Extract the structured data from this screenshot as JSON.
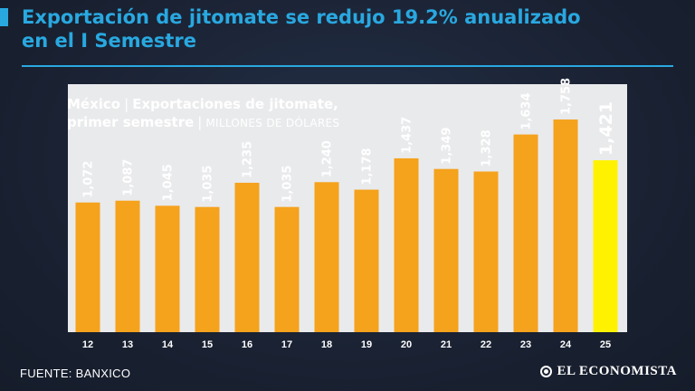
{
  "headline": {
    "line1": "Exportación de jitomate se redujo 19.2% anualizado",
    "line2": "en el I Semestre"
  },
  "subtitle": {
    "part1": "México",
    "part2": "Exportaciones de jitomate,",
    "part3": "primer semestre",
    "units": "MILLONES DE DÓLARES"
  },
  "source": "FUENTE: BANXICO",
  "logo": "EL ECONOMISTA",
  "colors": {
    "accent": "#29a8e0",
    "bar": "#f5a21c",
    "highlight": "#fff200",
    "background": "#1a2233",
    "panel": "#e9eaec"
  },
  "chart_data": {
    "type": "bar",
    "categories": [
      "12",
      "13",
      "14",
      "15",
      "16",
      "17",
      "18",
      "19",
      "20",
      "21",
      "22",
      "23",
      "24",
      "25"
    ],
    "values": [
      1072,
      1087,
      1045,
      1035,
      1235,
      1035,
      1240,
      1178,
      1437,
      1349,
      1328,
      1634,
      1758,
      1421
    ],
    "value_labels": [
      "1,072",
      "1,087",
      "1,045",
      "1,035",
      "1,235",
      "1,035",
      "1,240",
      "1,178",
      "1,437",
      "1,349",
      "1,328",
      "1,634",
      "1,758",
      "1,421"
    ],
    "highlight_index": 13,
    "ylim": [
      0,
      2050
    ],
    "grid": false,
    "legend": "none"
  }
}
